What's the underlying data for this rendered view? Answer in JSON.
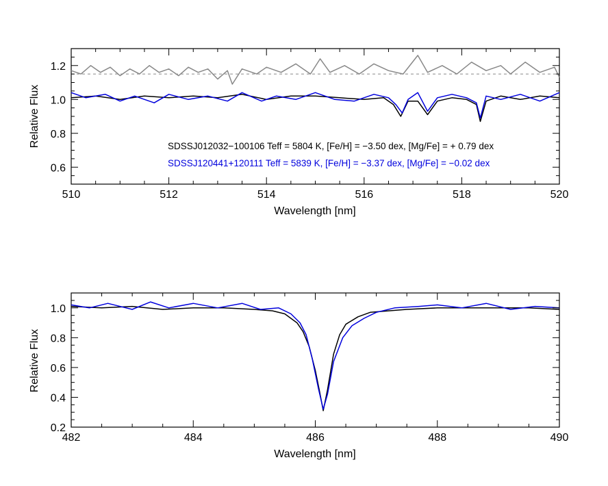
{
  "colors": {
    "star1": "#000000",
    "star2": "#0000dd",
    "difference": "#888888",
    "axes": "#000000"
  },
  "chart_data": [
    {
      "type": "line",
      "xlabel": "Wavelength [nm]",
      "ylabel": "Relative Flux",
      "xlim": [
        510,
        520
      ],
      "ylim": [
        0.5,
        1.3
      ],
      "xticks": [
        "510",
        "512",
        "514",
        "516",
        "518",
        "520"
      ],
      "yticks": [
        "0.6",
        "0.8",
        "1.0",
        "1.2"
      ],
      "xtick_values": [
        510,
        512,
        514,
        516,
        518,
        520
      ],
      "ytick_values": [
        0.6,
        0.8,
        1.0,
        1.2
      ],
      "annotations": [
        "SDSSJ012032−100106  Teff = 5804 K, [Fe/H] = −3.50 dex, [Mg/Fe] = + 0.79 dex",
        "SDSSJ120441+120111  Teff = 5839 K, [Fe/H] = −3.37 dex, [Mg/Fe]  = −0.02 dex"
      ],
      "reference_line": {
        "y": 1.15,
        "style": "dotted"
      },
      "series": [
        {
          "name": "SDSSJ012032−100106",
          "color": "#000000",
          "x": [
            510.0,
            510.5,
            511.0,
            511.5,
            512.0,
            512.5,
            513.0,
            513.5,
            514.0,
            514.5,
            515.0,
            515.5,
            516.0,
            516.4,
            516.6,
            516.75,
            516.9,
            517.1,
            517.3,
            517.5,
            517.8,
            518.1,
            518.3,
            518.38,
            518.5,
            518.8,
            519.2,
            519.6,
            520.0
          ],
          "y": [
            1.01,
            1.02,
            1.0,
            1.02,
            1.01,
            1.02,
            1.01,
            1.03,
            1.0,
            1.02,
            1.02,
            1.01,
            1.0,
            1.01,
            0.97,
            0.9,
            0.99,
            0.99,
            0.91,
            0.99,
            1.01,
            1.0,
            0.97,
            0.87,
            0.99,
            1.02,
            1.0,
            1.02,
            1.01
          ]
        },
        {
          "name": "SDSSJ120441+120111",
          "color": "#0000dd",
          "x": [
            510.0,
            510.3,
            510.7,
            511.0,
            511.3,
            511.7,
            512.0,
            512.4,
            512.8,
            513.2,
            513.5,
            513.9,
            514.2,
            514.6,
            515.0,
            515.4,
            515.8,
            516.2,
            516.5,
            516.65,
            516.78,
            516.9,
            517.1,
            517.3,
            517.5,
            517.8,
            518.1,
            518.3,
            518.38,
            518.5,
            518.8,
            519.2,
            519.6,
            520.0
          ],
          "y": [
            1.04,
            1.01,
            1.03,
            0.99,
            1.02,
            0.98,
            1.03,
            1.0,
            1.02,
            0.99,
            1.04,
            0.99,
            1.02,
            1.0,
            1.04,
            1.0,
            0.99,
            1.03,
            1.01,
            0.97,
            0.92,
            1.0,
            1.04,
            0.93,
            1.01,
            1.03,
            1.01,
            0.98,
            0.89,
            1.02,
            1.0,
            1.03,
            0.99,
            1.04
          ]
        },
        {
          "name": "",
          "color": "#888888",
          "x": [
            510.0,
            510.2,
            510.4,
            510.6,
            510.8,
            511.0,
            511.2,
            511.4,
            511.6,
            511.8,
            512.0,
            512.2,
            512.4,
            512.6,
            512.8,
            513.0,
            513.2,
            513.3,
            513.5,
            513.8,
            514.0,
            514.3,
            514.6,
            514.9,
            515.1,
            515.3,
            515.6,
            515.9,
            516.2,
            516.5,
            516.8,
            517.1,
            517.3,
            517.6,
            517.9,
            518.2,
            518.5,
            518.8,
            519.0,
            519.3,
            519.6,
            519.9,
            520.0
          ],
          "y": [
            1.17,
            1.15,
            1.2,
            1.16,
            1.19,
            1.14,
            1.18,
            1.15,
            1.2,
            1.16,
            1.18,
            1.14,
            1.19,
            1.16,
            1.18,
            1.12,
            1.17,
            1.09,
            1.18,
            1.15,
            1.19,
            1.16,
            1.21,
            1.15,
            1.24,
            1.16,
            1.2,
            1.15,
            1.21,
            1.17,
            1.15,
            1.26,
            1.16,
            1.2,
            1.15,
            1.22,
            1.17,
            1.2,
            1.15,
            1.22,
            1.16,
            1.19,
            1.13
          ]
        }
      ]
    },
    {
      "type": "line",
      "xlabel": "Wavelength [nm]",
      "ylabel": "Relative Flux",
      "xlim": [
        482,
        490
      ],
      "ylim": [
        0.2,
        1.1
      ],
      "xticks": [
        "482",
        "484",
        "486",
        "488",
        "490"
      ],
      "yticks": [
        "0.2",
        "0.4",
        "0.6",
        "0.8",
        "1.0"
      ],
      "xtick_values": [
        482,
        484,
        486,
        488,
        490
      ],
      "ytick_values": [
        0.2,
        0.4,
        0.6,
        0.8,
        1.0
      ],
      "series": [
        {
          "name": "SDSSJ012032−100106",
          "color": "#000000",
          "x": [
            482.0,
            482.5,
            483.0,
            483.5,
            484.0,
            484.5,
            485.0,
            485.3,
            485.5,
            485.7,
            485.8,
            485.9,
            486.0,
            486.07,
            486.13,
            486.2,
            486.3,
            486.4,
            486.5,
            486.7,
            486.9,
            487.2,
            487.5,
            488.0,
            488.5,
            489.0,
            489.5,
            490.0
          ],
          "y": [
            1.01,
            1.0,
            1.01,
            0.99,
            1.0,
            1.0,
            0.99,
            0.98,
            0.96,
            0.9,
            0.84,
            0.74,
            0.58,
            0.44,
            0.31,
            0.45,
            0.69,
            0.82,
            0.89,
            0.94,
            0.97,
            0.98,
            0.99,
            1.0,
            1.0,
            1.0,
            1.0,
            0.99
          ]
        },
        {
          "name": "SDSSJ120441+120111",
          "color": "#0000dd",
          "x": [
            482.0,
            482.3,
            482.6,
            483.0,
            483.3,
            483.6,
            484.0,
            484.4,
            484.8,
            485.1,
            485.4,
            485.6,
            485.75,
            485.85,
            485.95,
            486.05,
            486.13,
            486.2,
            486.3,
            486.45,
            486.6,
            486.8,
            487.0,
            487.3,
            487.7,
            488.0,
            488.4,
            488.8,
            489.2,
            489.6,
            490.0
          ],
          "y": [
            1.02,
            1.0,
            1.03,
            0.99,
            1.04,
            1.0,
            1.03,
            1.0,
            1.03,
            0.99,
            1.0,
            0.96,
            0.9,
            0.82,
            0.66,
            0.46,
            0.32,
            0.42,
            0.64,
            0.8,
            0.88,
            0.93,
            0.97,
            1.0,
            1.01,
            1.02,
            1.0,
            1.03,
            0.99,
            1.01,
            1.0
          ]
        }
      ]
    }
  ]
}
